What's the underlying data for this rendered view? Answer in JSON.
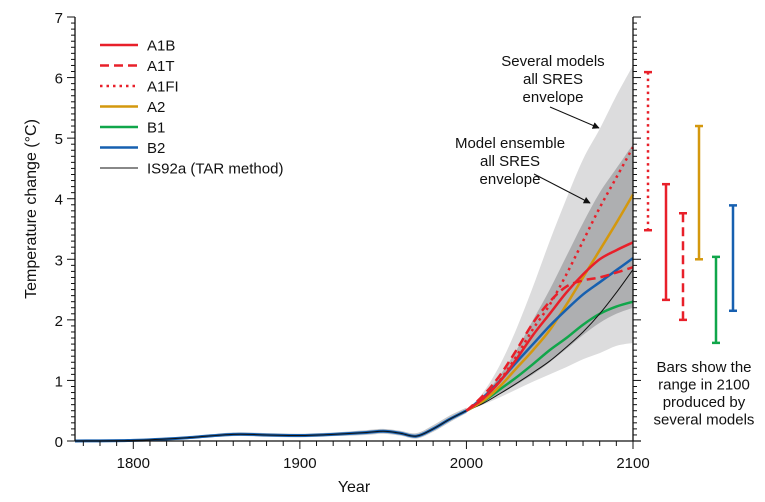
{
  "chart_data": {
    "type": "line",
    "title": "",
    "xlabel": "Year",
    "ylabel": "Temperature change (°C)",
    "xlim": [
      1765,
      2100
    ],
    "ylim": [
      0,
      7
    ],
    "x_ticks": [
      1800,
      1900,
      2000,
      2100
    ],
    "x_tick_labels": [
      "1800",
      "1900",
      "2000",
      "2100"
    ],
    "y_ticks": [
      0,
      1,
      2,
      3,
      4,
      5,
      6,
      7
    ],
    "y_tick_labels": [
      "0",
      "1",
      "2",
      "3",
      "4",
      "5",
      "6",
      "7"
    ],
    "grid": false,
    "legend_position": "top-left",
    "colors": {
      "red": "#e8202a",
      "orange": "#d4980e",
      "green": "#10a64a",
      "blue": "#1760b0",
      "black": "#111111",
      "outer_envelope": "#dcdcdd",
      "inner_envelope": "#aeafb1"
    },
    "historical": {
      "x": [
        1765,
        1800,
        1830,
        1860,
        1880,
        1900,
        1920,
        1940,
        1950,
        1960,
        1970,
        1980,
        1990,
        2000
      ],
      "y": [
        0.0,
        0.01,
        0.05,
        0.11,
        0.1,
        0.09,
        0.11,
        0.14,
        0.16,
        0.13,
        0.08,
        0.2,
        0.36,
        0.5
      ]
    },
    "historical_band": {
      "upper": [
        0.02,
        0.03,
        0.07,
        0.14,
        0.13,
        0.12,
        0.14,
        0.18,
        0.2,
        0.17,
        0.13,
        0.26,
        0.42,
        0.55
      ],
      "lower": [
        0.0,
        0.0,
        0.03,
        0.08,
        0.07,
        0.06,
        0.08,
        0.1,
        0.12,
        0.09,
        0.04,
        0.15,
        0.31,
        0.46
      ]
    },
    "projection_x": [
      2000,
      2010,
      2020,
      2030,
      2040,
      2050,
      2060,
      2070,
      2080,
      2090,
      2100
    ],
    "outer_envelope": {
      "upper": [
        0.5,
        0.8,
        1.25,
        1.85,
        2.55,
        3.3,
        4.0,
        4.65,
        5.15,
        5.7,
        6.2
      ],
      "lower": [
        0.5,
        0.6,
        0.72,
        0.85,
        0.98,
        1.1,
        1.22,
        1.35,
        1.45,
        1.57,
        1.62
      ]
    },
    "inner_envelope": {
      "upper": [
        0.5,
        0.74,
        1.08,
        1.5,
        2.0,
        2.5,
        3.05,
        3.6,
        4.1,
        4.5,
        4.9
      ],
      "lower": [
        0.5,
        0.62,
        0.77,
        0.93,
        1.1,
        1.3,
        1.52,
        1.75,
        1.95,
        2.1,
        2.2
      ]
    },
    "series": [
      {
        "name": "A1B",
        "style": "solid",
        "color": "#e8202a",
        "values": [
          0.5,
          0.7,
          0.98,
          1.35,
          1.75,
          2.1,
          2.45,
          2.75,
          3.0,
          3.15,
          3.28
        ]
      },
      {
        "name": "A1T",
        "style": "dashed",
        "color": "#e8202a",
        "values": [
          0.5,
          0.75,
          1.08,
          1.5,
          1.95,
          2.3,
          2.55,
          2.65,
          2.7,
          2.78,
          2.87
        ]
      },
      {
        "name": "A1FI",
        "style": "dotted",
        "color": "#e8202a",
        "values": [
          0.5,
          0.7,
          1.0,
          1.4,
          1.85,
          2.25,
          2.75,
          3.3,
          3.85,
          4.35,
          4.85
        ]
      },
      {
        "name": "A2",
        "style": "solid",
        "color": "#d4980e",
        "values": [
          0.5,
          0.66,
          0.9,
          1.2,
          1.5,
          1.83,
          2.25,
          2.7,
          3.15,
          3.6,
          4.07
        ]
      },
      {
        "name": "B1",
        "style": "solid",
        "color": "#10a64a",
        "values": [
          0.5,
          0.65,
          0.85,
          1.05,
          1.27,
          1.5,
          1.7,
          1.92,
          2.1,
          2.22,
          2.3
        ]
      },
      {
        "name": "B2",
        "style": "solid",
        "color": "#1760b0",
        "values": [
          0.5,
          0.72,
          0.99,
          1.3,
          1.6,
          1.9,
          2.17,
          2.42,
          2.62,
          2.82,
          3.02
        ]
      },
      {
        "name": "IS92a (TAR method)",
        "style": "thin",
        "color": "#111111",
        "values": [
          0.5,
          0.62,
          0.78,
          0.95,
          1.13,
          1.32,
          1.55,
          1.8,
          2.1,
          2.45,
          2.83
        ]
      }
    ],
    "range_bars_2100": [
      {
        "name": "A1FI",
        "style": "dotted",
        "color": "#e8202a",
        "low": 3.48,
        "high": 6.09
      },
      {
        "name": "A1B",
        "style": "solid",
        "color": "#e8202a",
        "low": 2.33,
        "high": 4.24
      },
      {
        "name": "A1T",
        "style": "dashed",
        "color": "#e8202a",
        "low": 2.0,
        "high": 3.76
      },
      {
        "name": "A2",
        "style": "solid",
        "color": "#d4980e",
        "low": 3.0,
        "high": 5.2
      },
      {
        "name": "B1",
        "style": "solid",
        "color": "#10a64a",
        "low": 1.62,
        "high": 3.04
      },
      {
        "name": "B2",
        "style": "solid",
        "color": "#1760b0",
        "low": 2.15,
        "high": 3.89
      }
    ],
    "annotations": {
      "outer": [
        "Several models",
        "all SRES",
        "envelope"
      ],
      "inner": [
        "Model ensemble",
        "all SRES",
        "envelope"
      ],
      "bars_note": [
        "Bars show the",
        "range in 2100",
        "produced by",
        "several models"
      ]
    }
  }
}
